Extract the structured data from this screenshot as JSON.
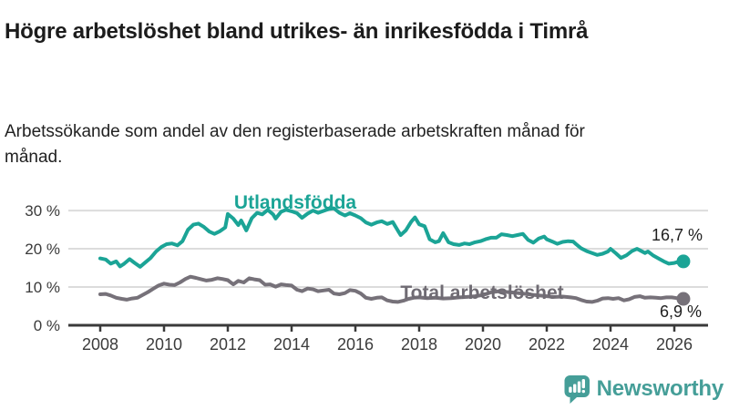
{
  "header": {
    "title": "Högre arbetslöshet bland utrikes- än inrikesfödda i Timrå",
    "subtitle": "Arbetssökande som andel av den registerbaserade arbetskraften månad för månad."
  },
  "colors": {
    "teal": "#1ba496",
    "gray": "#767179",
    "grid": "#dcdcdc",
    "axis": "#3a3a3a",
    "axis_text": "#3b3b3b",
    "title_text": "#1c1c1c",
    "logo_teal": "#459e98"
  },
  "chart_data": {
    "type": "line",
    "title": "Högre arbetslöshet bland utrikes- än inrikesfödda i Timrå",
    "subtitle": "Arbetssökande som andel av den registerbaserade arbetskraften månad för månad.",
    "xlabel": "",
    "ylabel": "",
    "grid": "horizontal",
    "legend": "inline-labels",
    "x_axis": {
      "range": [
        2008,
        2026.17
      ],
      "tick_values": [
        2008,
        2010,
        2012,
        2014,
        2016,
        2018,
        2020,
        2022,
        2024,
        2026
      ],
      "tick_labels": [
        "2008",
        "2010",
        "2012",
        "2014",
        "2016",
        "2018",
        "2020",
        "2022",
        "2024",
        "2026"
      ]
    },
    "y_axis": {
      "unit": "%",
      "range": [
        0,
        38.6
      ],
      "ticks": [
        {
          "value": 0,
          "label": "0 %"
        },
        {
          "value": 10,
          "label": "10 %"
        },
        {
          "value": 20,
          "label": "20 %"
        },
        {
          "value": 30,
          "label": "30 %"
        }
      ]
    },
    "series": [
      {
        "name": "Utlandsfödda",
        "color": "#1ba496",
        "end_label": "16,7 %",
        "end_value": 16.7,
        "points": [
          [
            2008.0,
            17.5
          ],
          [
            2008.17,
            17.2
          ],
          [
            2008.33,
            16.1
          ],
          [
            2008.5,
            16.7
          ],
          [
            2008.62,
            15.4
          ],
          [
            2008.75,
            16.1
          ],
          [
            2008.92,
            17.3
          ],
          [
            2009.08,
            16.3
          ],
          [
            2009.25,
            15.3
          ],
          [
            2009.42,
            16.5
          ],
          [
            2009.58,
            17.6
          ],
          [
            2009.75,
            19.3
          ],
          [
            2009.92,
            20.5
          ],
          [
            2010.08,
            21.2
          ],
          [
            2010.25,
            21.4
          ],
          [
            2010.42,
            20.9
          ],
          [
            2010.58,
            22.0
          ],
          [
            2010.75,
            25.0
          ],
          [
            2010.92,
            26.3
          ],
          [
            2011.08,
            26.6
          ],
          [
            2011.25,
            25.7
          ],
          [
            2011.42,
            24.5
          ],
          [
            2011.58,
            23.9
          ],
          [
            2011.75,
            24.6
          ],
          [
            2011.92,
            25.6
          ],
          [
            2012.0,
            29.1
          ],
          [
            2012.17,
            27.9
          ],
          [
            2012.33,
            26.2
          ],
          [
            2012.42,
            27.4
          ],
          [
            2012.58,
            24.8
          ],
          [
            2012.75,
            28.0
          ],
          [
            2012.92,
            29.4
          ],
          [
            2013.08,
            29.0
          ],
          [
            2013.25,
            30.2
          ],
          [
            2013.42,
            29.0
          ],
          [
            2013.5,
            27.9
          ],
          [
            2013.67,
            29.7
          ],
          [
            2013.83,
            30.2
          ],
          [
            2014.0,
            29.8
          ],
          [
            2014.17,
            29.3
          ],
          [
            2014.33,
            28.1
          ],
          [
            2014.5,
            29.2
          ],
          [
            2014.67,
            30.0
          ],
          [
            2014.83,
            29.4
          ],
          [
            2015.0,
            29.9
          ],
          [
            2015.17,
            30.4
          ],
          [
            2015.33,
            30.6
          ],
          [
            2015.5,
            29.4
          ],
          [
            2015.67,
            28.7
          ],
          [
            2015.83,
            29.3
          ],
          [
            2016.0,
            28.7
          ],
          [
            2016.17,
            28.0
          ],
          [
            2016.33,
            26.9
          ],
          [
            2016.5,
            26.3
          ],
          [
            2016.67,
            26.9
          ],
          [
            2016.83,
            27.2
          ],
          [
            2017.0,
            26.5
          ],
          [
            2017.17,
            27.0
          ],
          [
            2017.33,
            24.8
          ],
          [
            2017.42,
            23.6
          ],
          [
            2017.58,
            24.8
          ],
          [
            2017.75,
            27.1
          ],
          [
            2017.87,
            28.2
          ],
          [
            2018.0,
            26.4
          ],
          [
            2018.17,
            25.9
          ],
          [
            2018.33,
            22.5
          ],
          [
            2018.5,
            21.7
          ],
          [
            2018.62,
            22.0
          ],
          [
            2018.75,
            24.1
          ],
          [
            2018.92,
            21.7
          ],
          [
            2019.08,
            21.2
          ],
          [
            2019.25,
            21.0
          ],
          [
            2019.42,
            21.4
          ],
          [
            2019.58,
            21.2
          ],
          [
            2019.75,
            21.7
          ],
          [
            2019.92,
            22.0
          ],
          [
            2020.08,
            22.5
          ],
          [
            2020.25,
            22.9
          ],
          [
            2020.42,
            22.9
          ],
          [
            2020.58,
            23.8
          ],
          [
            2020.75,
            23.6
          ],
          [
            2020.92,
            23.3
          ],
          [
            2021.08,
            23.6
          ],
          [
            2021.25,
            23.9
          ],
          [
            2021.42,
            22.3
          ],
          [
            2021.58,
            21.6
          ],
          [
            2021.75,
            22.7
          ],
          [
            2021.92,
            23.2
          ],
          [
            2022.0,
            22.5
          ],
          [
            2022.17,
            21.9
          ],
          [
            2022.33,
            21.3
          ],
          [
            2022.5,
            21.8
          ],
          [
            2022.67,
            22.0
          ],
          [
            2022.83,
            21.9
          ],
          [
            2022.92,
            21.2
          ],
          [
            2023.08,
            20.1
          ],
          [
            2023.25,
            19.4
          ],
          [
            2023.42,
            18.9
          ],
          [
            2023.58,
            18.4
          ],
          [
            2023.75,
            18.7
          ],
          [
            2023.92,
            19.3
          ],
          [
            2024.0,
            20.0
          ],
          [
            2024.17,
            18.8
          ],
          [
            2024.33,
            17.6
          ],
          [
            2024.5,
            18.3
          ],
          [
            2024.67,
            19.4
          ],
          [
            2024.83,
            20.0
          ],
          [
            2024.92,
            19.6
          ],
          [
            2025.08,
            18.9
          ],
          [
            2025.17,
            19.3
          ],
          [
            2025.33,
            18.3
          ],
          [
            2025.5,
            17.5
          ],
          [
            2025.67,
            16.7
          ],
          [
            2025.83,
            16.1
          ],
          [
            2026.0,
            16.3
          ],
          [
            2026.17,
            16.7
          ]
        ]
      },
      {
        "name": "Total arbetslöshet",
        "color": "#767179",
        "end_label": "6,9 %",
        "end_value": 6.9,
        "points": [
          [
            2008.0,
            8.1
          ],
          [
            2008.17,
            8.2
          ],
          [
            2008.33,
            7.8
          ],
          [
            2008.5,
            7.2
          ],
          [
            2008.67,
            6.9
          ],
          [
            2008.83,
            6.7
          ],
          [
            2009.0,
            7.0
          ],
          [
            2009.17,
            7.2
          ],
          [
            2009.33,
            7.9
          ],
          [
            2009.5,
            8.7
          ],
          [
            2009.67,
            9.6
          ],
          [
            2009.83,
            10.4
          ],
          [
            2010.0,
            10.9
          ],
          [
            2010.17,
            10.6
          ],
          [
            2010.33,
            10.5
          ],
          [
            2010.5,
            11.2
          ],
          [
            2010.67,
            12.1
          ],
          [
            2010.83,
            12.7
          ],
          [
            2011.0,
            12.4
          ],
          [
            2011.17,
            12.0
          ],
          [
            2011.33,
            11.7
          ],
          [
            2011.5,
            11.9
          ],
          [
            2011.67,
            12.3
          ],
          [
            2011.83,
            12.1
          ],
          [
            2012.0,
            11.8
          ],
          [
            2012.17,
            10.7
          ],
          [
            2012.33,
            11.6
          ],
          [
            2012.5,
            11.2
          ],
          [
            2012.67,
            12.3
          ],
          [
            2012.83,
            12.0
          ],
          [
            2013.0,
            11.8
          ],
          [
            2013.17,
            10.6
          ],
          [
            2013.33,
            10.7
          ],
          [
            2013.5,
            10.1
          ],
          [
            2013.67,
            10.7
          ],
          [
            2013.83,
            10.5
          ],
          [
            2014.0,
            10.4
          ],
          [
            2014.17,
            9.3
          ],
          [
            2014.33,
            8.9
          ],
          [
            2014.5,
            9.6
          ],
          [
            2014.67,
            9.4
          ],
          [
            2014.83,
            8.9
          ],
          [
            2015.0,
            9.1
          ],
          [
            2015.17,
            9.3
          ],
          [
            2015.33,
            8.3
          ],
          [
            2015.5,
            8.1
          ],
          [
            2015.67,
            8.4
          ],
          [
            2015.83,
            9.2
          ],
          [
            2016.0,
            9.0
          ],
          [
            2016.17,
            8.3
          ],
          [
            2016.33,
            7.2
          ],
          [
            2016.5,
            6.9
          ],
          [
            2016.67,
            7.2
          ],
          [
            2016.83,
            7.3
          ],
          [
            2017.0,
            6.5
          ],
          [
            2017.17,
            6.2
          ],
          [
            2017.33,
            6.1
          ],
          [
            2017.5,
            6.4
          ],
          [
            2017.67,
            6.9
          ],
          [
            2017.83,
            7.2
          ],
          [
            2018.0,
            7.3
          ],
          [
            2018.25,
            7.1
          ],
          [
            2018.5,
            7.2
          ],
          [
            2018.75,
            7.0
          ],
          [
            2019.0,
            7.1
          ],
          [
            2019.25,
            7.3
          ],
          [
            2019.5,
            7.4
          ],
          [
            2019.75,
            7.6
          ],
          [
            2020.0,
            7.9
          ],
          [
            2020.25,
            8.6
          ],
          [
            2020.5,
            8.9
          ],
          [
            2020.75,
            8.7
          ],
          [
            2021.0,
            8.5
          ],
          [
            2021.25,
            8.3
          ],
          [
            2021.5,
            8.0
          ],
          [
            2021.75,
            7.8
          ],
          [
            2022.0,
            7.6
          ],
          [
            2022.25,
            7.4
          ],
          [
            2022.5,
            7.5
          ],
          [
            2022.75,
            7.3
          ],
          [
            2022.92,
            7.1
          ],
          [
            2023.08,
            6.6
          ],
          [
            2023.25,
            6.2
          ],
          [
            2023.42,
            6.1
          ],
          [
            2023.58,
            6.4
          ],
          [
            2023.75,
            7.0
          ],
          [
            2023.92,
            7.1
          ],
          [
            2024.08,
            6.9
          ],
          [
            2024.25,
            7.1
          ],
          [
            2024.42,
            6.5
          ],
          [
            2024.58,
            6.8
          ],
          [
            2024.75,
            7.4
          ],
          [
            2024.92,
            7.6
          ],
          [
            2025.08,
            7.2
          ],
          [
            2025.25,
            7.3
          ],
          [
            2025.42,
            7.2
          ],
          [
            2025.58,
            7.1
          ],
          [
            2025.75,
            7.3
          ],
          [
            2025.92,
            7.3
          ],
          [
            2026.08,
            7.1
          ],
          [
            2026.17,
            6.9
          ]
        ]
      }
    ]
  },
  "logo": {
    "text": "Newsworthy"
  }
}
